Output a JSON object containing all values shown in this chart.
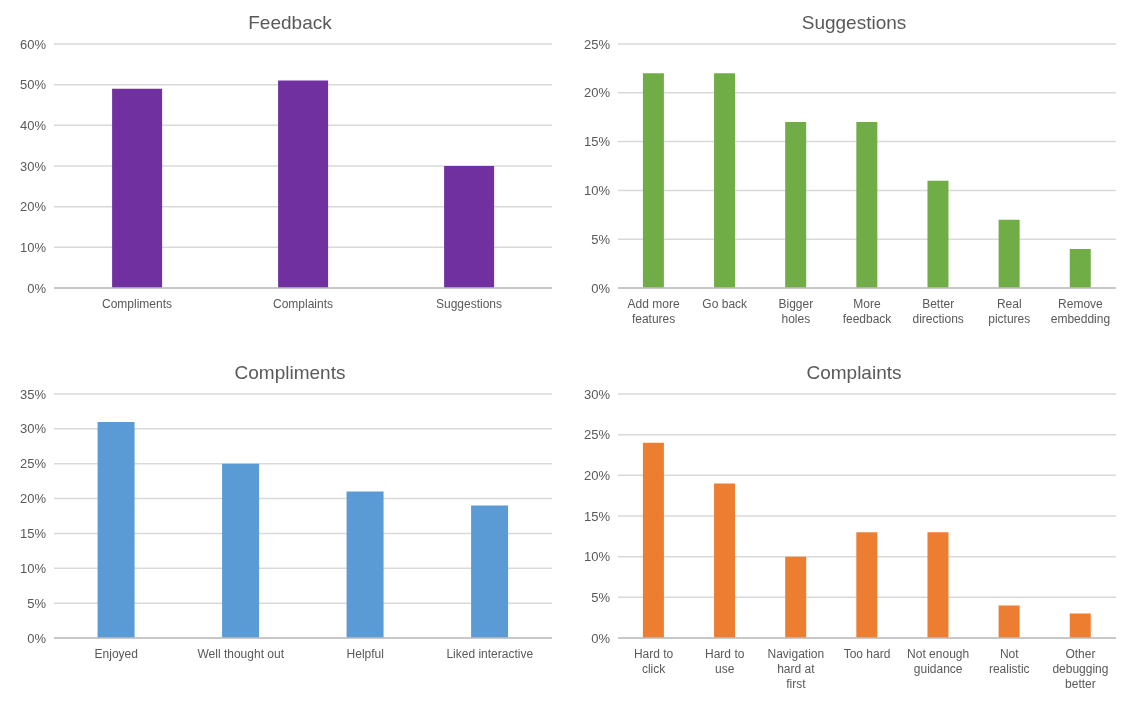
{
  "chart_data": [
    {
      "type": "bar",
      "title": "Feedback",
      "categories": [
        "Compliments",
        "Complaints",
        "Suggestions"
      ],
      "values": [
        49,
        51,
        30
      ],
      "color": "#7030a0",
      "ylim": [
        0,
        60
      ],
      "yticks": [
        {
          "value": 0,
          "label": "0%"
        },
        {
          "value": 10,
          "label": "10%"
        },
        {
          "value": 20,
          "label": "20%"
        },
        {
          "value": 30,
          "label": "30%"
        },
        {
          "value": 40,
          "label": "40%"
        },
        {
          "value": 50,
          "label": "50%"
        },
        {
          "value": 60,
          "label": "60%"
        }
      ],
      "grid": "y",
      "legend": false
    },
    {
      "type": "bar",
      "title": "Suggestions",
      "categories": [
        "Add more features",
        "Go back",
        "Bigger holes",
        "More feedback",
        "Better directions",
        "Real pictures",
        "Remove embedding"
      ],
      "values": [
        22,
        22,
        17,
        17,
        11,
        7,
        4
      ],
      "color": "#70ad47",
      "ylim": [
        0,
        25
      ],
      "yticks": [
        {
          "value": 0,
          "label": "0%"
        },
        {
          "value": 5,
          "label": "5%"
        },
        {
          "value": 10,
          "label": "10%"
        },
        {
          "value": 15,
          "label": "15%"
        },
        {
          "value": 20,
          "label": "20%"
        },
        {
          "value": 25,
          "label": "25%"
        }
      ],
      "grid": "y",
      "legend": false
    },
    {
      "type": "bar",
      "title": "Compliments",
      "categories": [
        "Enjoyed",
        "Well thought out",
        "Helpful",
        "Liked interactive"
      ],
      "values": [
        31,
        25,
        21,
        19
      ],
      "color": "#5b9bd5",
      "ylim": [
        0,
        35
      ],
      "yticks": [
        {
          "value": 0,
          "label": "0%"
        },
        {
          "value": 5,
          "label": "5%"
        },
        {
          "value": 10,
          "label": "10%"
        },
        {
          "value": 15,
          "label": "15%"
        },
        {
          "value": 20,
          "label": "20%"
        },
        {
          "value": 25,
          "label": "25%"
        },
        {
          "value": 30,
          "label": "30%"
        },
        {
          "value": 35,
          "label": "35%"
        }
      ],
      "grid": "y",
      "legend": false
    },
    {
      "type": "bar",
      "title": "Complaints",
      "categories": [
        "Hard to click",
        "Hard to use",
        "Navigation hard at first",
        "Too hard",
        "Not enough guidance",
        "Not realistic",
        "Other debugging better"
      ],
      "values": [
        24,
        19,
        10,
        13,
        13,
        4,
        3
      ],
      "color": "#ed7d31",
      "ylim": [
        0,
        30
      ],
      "yticks": [
        {
          "value": 0,
          "label": "0%"
        },
        {
          "value": 5,
          "label": "5%"
        },
        {
          "value": 10,
          "label": "10%"
        },
        {
          "value": 15,
          "label": "15%"
        },
        {
          "value": 20,
          "label": "20%"
        },
        {
          "value": 25,
          "label": "25%"
        },
        {
          "value": 30,
          "label": "30%"
        }
      ],
      "grid": "y",
      "legend": false
    }
  ]
}
